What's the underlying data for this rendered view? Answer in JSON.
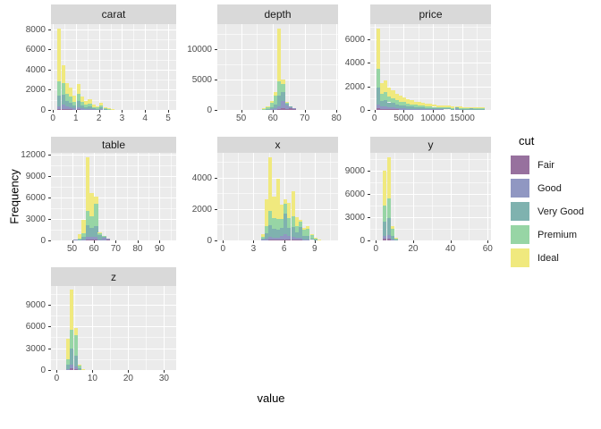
{
  "figure": {
    "xlabel": "value",
    "ylabel": "Frequency",
    "legend": {
      "title": "cut",
      "entries": [
        {
          "label": "Fair",
          "color": "#97719e"
        },
        {
          "label": "Good",
          "color": "#9097c2"
        },
        {
          "label": "Very Good",
          "color": "#7fb2af"
        },
        {
          "label": "Premium",
          "color": "#97d5a5"
        },
        {
          "label": "Ideal",
          "color": "#f0e97e"
        }
      ]
    },
    "panel_bg": "#ebebeb",
    "strip_bg": "#d9d9d9",
    "gridline_color": "#ffffff"
  },
  "chart_data": {
    "type": "bar",
    "subtype": "stacked-histogram-facets",
    "stack_order": [
      "Fair",
      "Good",
      "Very Good",
      "Premium",
      "Ideal"
    ],
    "profiles": {
      "default": [
        0.03,
        0.09,
        0.22,
        0.26,
        0.4
      ],
      "ideal": [
        0.01,
        0.03,
        0.14,
        0.17,
        0.65
      ],
      "ideal2": [
        0.02,
        0.05,
        0.2,
        0.23,
        0.5
      ],
      "premium": [
        0.02,
        0.06,
        0.25,
        0.5,
        0.17
      ],
      "vg": [
        0.03,
        0.12,
        0.5,
        0.25,
        0.1
      ],
      "good": [
        0.08,
        0.5,
        0.25,
        0.12,
        0.05
      ],
      "mixg": [
        0.05,
        0.25,
        0.3,
        0.25,
        0.15
      ],
      "fair": [
        0.55,
        0.3,
        0.1,
        0.03,
        0.02
      ]
    },
    "facets": [
      {
        "title": "carat",
        "xlim": [
          -0.08,
          5.35
        ],
        "ymax": 8500,
        "binwidth": 0.166,
        "x_ticks": [
          0,
          1,
          2,
          3,
          4,
          5
        ],
        "y_ticks": [
          0,
          2000,
          4000,
          6000,
          8000
        ],
        "bars": [
          {
            "x": 0.2,
            "total": 8100,
            "profile": "ideal"
          },
          {
            "x": 0.37,
            "total": 4400,
            "profile": "default"
          },
          {
            "x": 0.53,
            "total": 2700,
            "profile": "default"
          },
          {
            "x": 0.7,
            "total": 2200,
            "profile": "default"
          },
          {
            "x": 0.86,
            "total": 1400,
            "profile": "default"
          },
          {
            "x": 1.03,
            "total": 2600,
            "profile": "default"
          },
          {
            "x": 1.19,
            "total": 1300,
            "profile": "default"
          },
          {
            "x": 1.36,
            "total": 900,
            "profile": "default"
          },
          {
            "x": 1.52,
            "total": 1100,
            "profile": "default"
          },
          {
            "x": 1.69,
            "total": 500,
            "profile": "default"
          },
          {
            "x": 1.86,
            "total": 400,
            "profile": "default"
          },
          {
            "x": 2.02,
            "total": 700,
            "profile": "default"
          },
          {
            "x": 2.19,
            "total": 300,
            "profile": "default"
          },
          {
            "x": 2.35,
            "total": 150,
            "profile": "default"
          },
          {
            "x": 2.52,
            "total": 80,
            "profile": "default"
          },
          {
            "x": 2.69,
            "total": 40,
            "profile": "default"
          },
          {
            "x": 2.85,
            "total": 20,
            "profile": "default"
          },
          {
            "x": 3.02,
            "total": 12,
            "profile": "default"
          },
          {
            "x": 3.35,
            "total": 8,
            "profile": "default"
          },
          {
            "x": 3.69,
            "total": 5,
            "profile": "default"
          },
          {
            "x": 4.02,
            "total": 4,
            "profile": "default"
          },
          {
            "x": 4.35,
            "total": 3,
            "profile": "default"
          },
          {
            "x": 5.01,
            "total": 2,
            "profile": "default"
          }
        ]
      },
      {
        "title": "depth",
        "xlim": [
          42.5,
          80.5
        ],
        "ymax": 14100,
        "binwidth": 1.2,
        "x_ticks": [
          50,
          60,
          70,
          80
        ],
        "y_ticks": [
          0,
          5000,
          10000
        ],
        "bars": [
          {
            "x": 55.4,
            "total": 120,
            "profile": "vg"
          },
          {
            "x": 56.6,
            "total": 280,
            "profile": "default"
          },
          {
            "x": 57.8,
            "total": 650,
            "profile": "premium"
          },
          {
            "x": 59.0,
            "total": 1500,
            "profile": "premium"
          },
          {
            "x": 60.2,
            "total": 2900,
            "profile": "premium"
          },
          {
            "x": 61.4,
            "total": 13400,
            "profile": "ideal"
          },
          {
            "x": 62.6,
            "total": 5000,
            "profile": "mixg"
          },
          {
            "x": 63.8,
            "total": 1300,
            "profile": "good"
          },
          {
            "x": 65.0,
            "total": 550,
            "profile": "fair"
          },
          {
            "x": 66.2,
            "total": 280,
            "profile": "fair"
          },
          {
            "x": 67.4,
            "total": 130,
            "profile": "fair"
          },
          {
            "x": 68.6,
            "total": 60,
            "profile": "fair"
          },
          {
            "x": 69.8,
            "total": 25,
            "profile": "fair"
          }
        ]
      },
      {
        "title": "price",
        "xlim": [
          -700,
          19900
        ],
        "ymax": 7250,
        "binwidth": 638,
        "x_ticks": [
          0,
          5000,
          10000,
          15000,
          20000
        ],
        "y_ticks": [
          0,
          2000,
          4000,
          6000
        ],
        "bars": [
          {
            "x": 326,
            "total": 6900,
            "profile": "ideal2"
          },
          {
            "x": 964,
            "total": 2300,
            "profile": "default"
          },
          {
            "x": 1602,
            "total": 2500,
            "profile": "default"
          },
          {
            "x": 2240,
            "total": 1900,
            "profile": "default"
          },
          {
            "x": 2878,
            "total": 1700,
            "profile": "default"
          },
          {
            "x": 3516,
            "total": 1400,
            "profile": "default"
          },
          {
            "x": 4154,
            "total": 1200,
            "profile": "default"
          },
          {
            "x": 4792,
            "total": 1100,
            "profile": "default"
          },
          {
            "x": 5430,
            "total": 900,
            "profile": "default"
          },
          {
            "x": 6068,
            "total": 800,
            "profile": "default"
          },
          {
            "x": 6706,
            "total": 700,
            "profile": "default"
          },
          {
            "x": 7344,
            "total": 650,
            "profile": "default"
          },
          {
            "x": 7982,
            "total": 600,
            "profile": "default"
          },
          {
            "x": 8620,
            "total": 550,
            "profile": "default"
          },
          {
            "x": 9258,
            "total": 500,
            "profile": "default"
          },
          {
            "x": 9896,
            "total": 450,
            "profile": "default"
          },
          {
            "x": 10534,
            "total": 420,
            "profile": "default"
          },
          {
            "x": 11172,
            "total": 400,
            "profile": "default"
          },
          {
            "x": 11810,
            "total": 370,
            "profile": "default"
          },
          {
            "x": 12448,
            "total": 350,
            "profile": "default"
          },
          {
            "x": 13086,
            "total": 320,
            "profile": "default"
          },
          {
            "x": 13724,
            "total": 300,
            "profile": "vg"
          },
          {
            "x": 14362,
            "total": 280,
            "profile": "default"
          },
          {
            "x": 15000,
            "total": 260,
            "profile": "default"
          },
          {
            "x": 15638,
            "total": 250,
            "profile": "default"
          },
          {
            "x": 16276,
            "total": 240,
            "profile": "vg"
          },
          {
            "x": 16914,
            "total": 230,
            "profile": "default"
          },
          {
            "x": 17552,
            "total": 220,
            "profile": "default"
          },
          {
            "x": 18190,
            "total": 210,
            "profile": "default"
          }
        ]
      },
      {
        "title": "table",
        "xlim": [
          40.4,
          97.6
        ],
        "ymax": 12300,
        "binwidth": 1.86,
        "x_ticks": [
          40,
          50,
          60,
          70,
          80,
          90
        ],
        "y_ticks": [
          0,
          3000,
          6000,
          9000,
          12000
        ],
        "bars": [
          {
            "x": 48.7,
            "total": 60,
            "profile": "fair"
          },
          {
            "x": 50.6,
            "total": 150,
            "profile": "good"
          },
          {
            "x": 52.5,
            "total": 900,
            "profile": "ideal"
          },
          {
            "x": 54.3,
            "total": 2900,
            "profile": "ideal"
          },
          {
            "x": 56.2,
            "total": 11700,
            "profile": "ideal"
          },
          {
            "x": 58.1,
            "total": 6700,
            "profile": "ideal2"
          },
          {
            "x": 60.0,
            "total": 6200,
            "profile": "premium"
          },
          {
            "x": 61.8,
            "total": 1100,
            "profile": "vg"
          },
          {
            "x": 63.7,
            "total": 600,
            "profile": "good"
          },
          {
            "x": 65.6,
            "total": 250,
            "profile": "fair"
          },
          {
            "x": 67.4,
            "total": 120,
            "profile": "fair"
          },
          {
            "x": 69.3,
            "total": 60,
            "profile": "fair"
          }
        ]
      },
      {
        "title": "x",
        "xlim": [
          -0.55,
          11.3
        ],
        "ymax": 5570,
        "binwidth": 0.37,
        "x_ticks": [
          0,
          3,
          6,
          9
        ],
        "y_ticks": [
          0,
          2000,
          4000
        ],
        "bars": [
          {
            "x": 3.73,
            "total": 400,
            "profile": "default"
          },
          {
            "x": 4.1,
            "total": 2600,
            "profile": "ideal"
          },
          {
            "x": 4.47,
            "total": 5300,
            "profile": "ideal"
          },
          {
            "x": 4.84,
            "total": 2800,
            "profile": "ideal2"
          },
          {
            "x": 5.21,
            "total": 3900,
            "profile": "ideal"
          },
          {
            "x": 5.58,
            "total": 2300,
            "profile": "default"
          },
          {
            "x": 5.95,
            "total": 2600,
            "profile": "vg"
          },
          {
            "x": 6.32,
            "total": 2400,
            "profile": "default"
          },
          {
            "x": 6.69,
            "total": 3100,
            "profile": "ideal2"
          },
          {
            "x": 7.06,
            "total": 1500,
            "profile": "default"
          },
          {
            "x": 7.43,
            "total": 1300,
            "profile": "vg"
          },
          {
            "x": 7.8,
            "total": 800,
            "profile": "premium"
          },
          {
            "x": 8.17,
            "total": 900,
            "profile": "premium"
          },
          {
            "x": 8.54,
            "total": 400,
            "profile": "premium"
          },
          {
            "x": 8.91,
            "total": 200,
            "profile": "premium"
          },
          {
            "x": 9.28,
            "total": 80,
            "profile": "default"
          },
          {
            "x": 9.65,
            "total": 30,
            "profile": "default"
          }
        ]
      },
      {
        "title": "y",
        "xlim": [
          -3,
          61.8
        ],
        "ymax": 11250,
        "binwidth": 1.96,
        "x_ticks": [
          0,
          20,
          40,
          60
        ],
        "y_ticks": [
          0,
          3000,
          6000,
          9000
        ],
        "bars": [
          {
            "x": 3.93,
            "total": 9000,
            "profile": "ideal2"
          },
          {
            "x": 5.89,
            "total": 10700,
            "profile": "ideal2"
          },
          {
            "x": 7.86,
            "total": 1800,
            "profile": "premium"
          },
          {
            "x": 9.82,
            "total": 300,
            "profile": "premium"
          },
          {
            "x": 11.8,
            "total": 60,
            "profile": "default"
          }
        ]
      },
      {
        "title": "z",
        "xlim": [
          -1.6,
          33.4
        ],
        "ymax": 11550,
        "binwidth": 1.06,
        "x_ticks": [
          0,
          10,
          20,
          30
        ],
        "y_ticks": [
          0,
          3000,
          6000,
          9000
        ],
        "bars": [
          {
            "x": 2.65,
            "total": 4300,
            "profile": "ideal"
          },
          {
            "x": 3.71,
            "total": 11000,
            "profile": "ideal2"
          },
          {
            "x": 4.77,
            "total": 5800,
            "profile": "premium"
          },
          {
            "x": 5.83,
            "total": 700,
            "profile": "premium"
          },
          {
            "x": 6.89,
            "total": 150,
            "profile": "default"
          }
        ]
      }
    ]
  }
}
